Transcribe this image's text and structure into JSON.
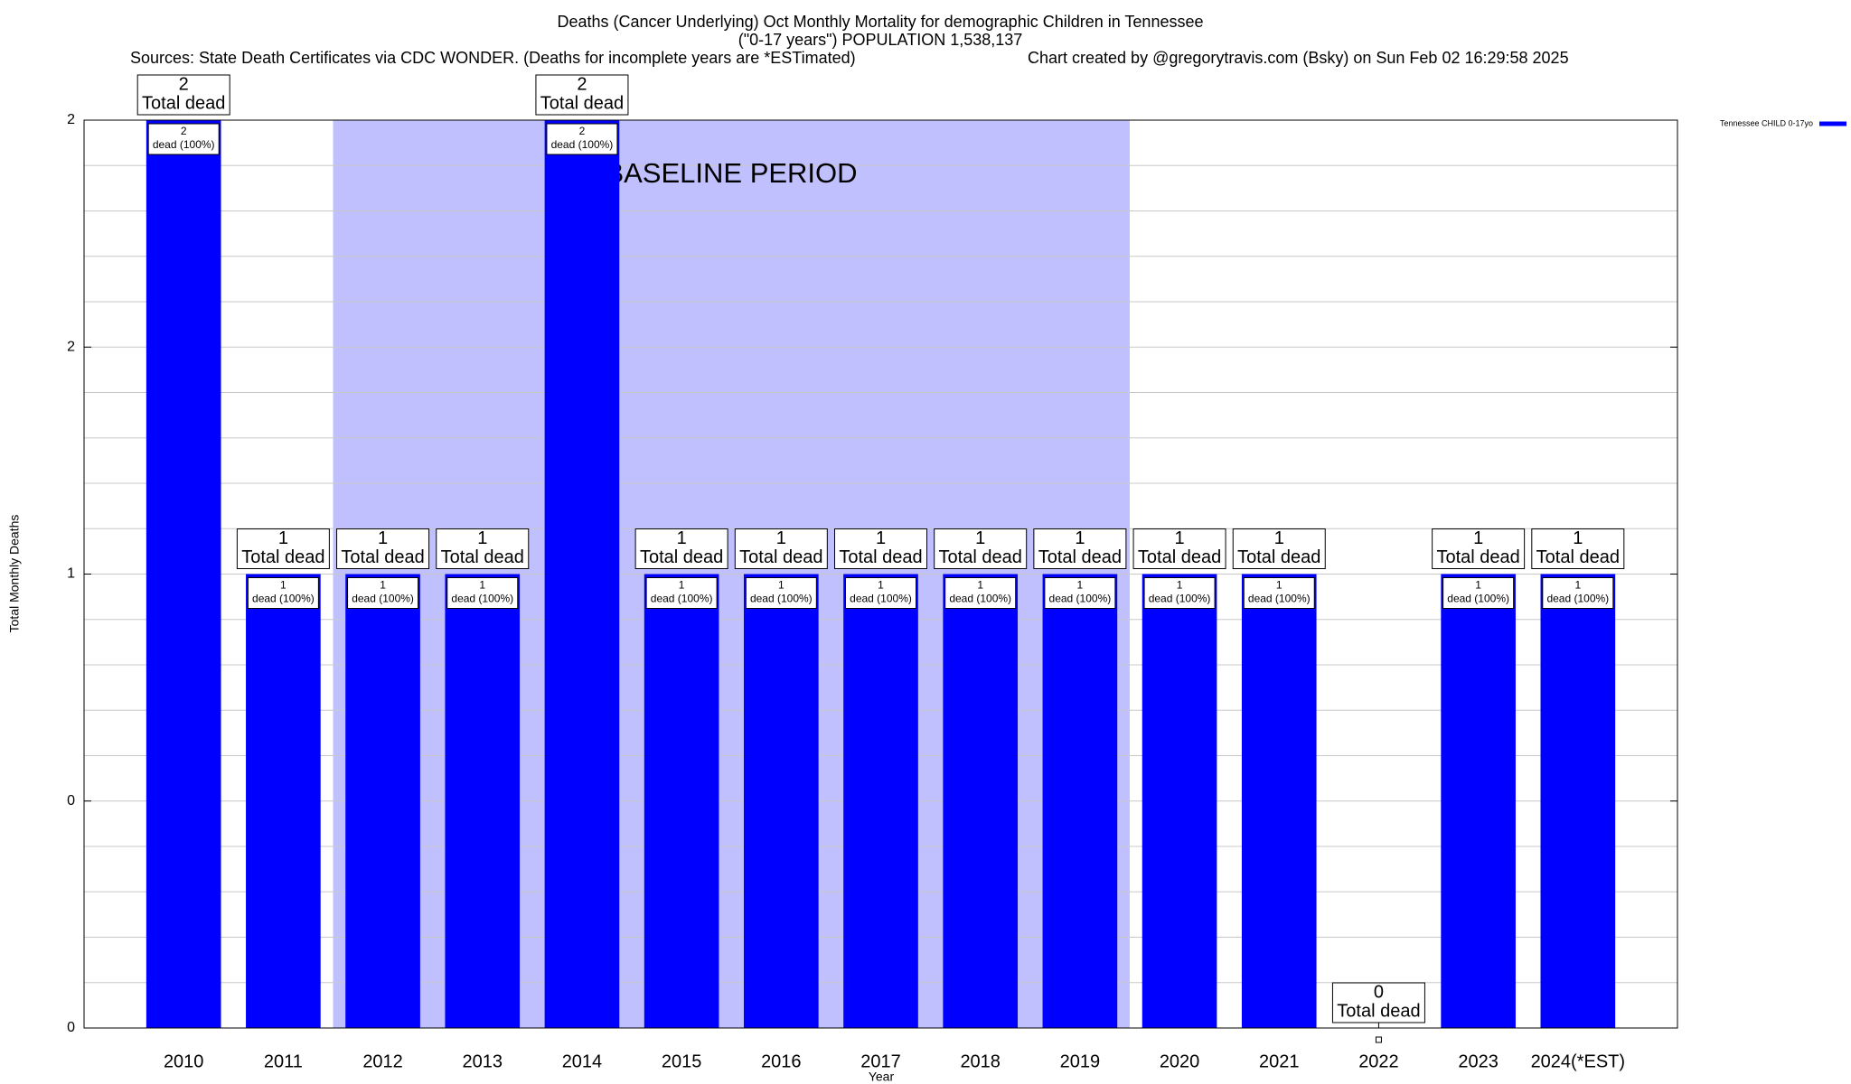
{
  "chart_data": {
    "type": "bar",
    "title": "Deaths (Cancer Underlying) Oct Monthly Mortality for demographic Children in Tennessee",
    "subtitle": "(\"0-17 years\") POPULATION 1,538,137",
    "source": "Sources: State Death Certificates via CDC WONDER. (Deaths for incomplete years are *ESTimated)",
    "credit": "Chart created by @gregorytravis.com (Bsky) on Sun Feb 02 16:29:58 2025",
    "x_label": "Year",
    "y_label": "Total Monthly Deaths",
    "categories": [
      "2010",
      "2011",
      "2012",
      "2013",
      "2014",
      "2015",
      "2016",
      "2017",
      "2018",
      "2019",
      "2020",
      "2021",
      "2022",
      "2023",
      "2024(*EST)"
    ],
    "series": [
      {
        "name": "Tennessee CHILD 0-17yo",
        "color": "#0000ff",
        "values": [
          2,
          1,
          1,
          1,
          2,
          1,
          1,
          1,
          1,
          1,
          1,
          1,
          0,
          1,
          1
        ]
      }
    ],
    "total_label": "Total dead",
    "share_label": "dead (100%)",
    "ylim": [
      0,
      2
    ],
    "yticks": [
      0,
      {
        "value": 0.5,
        "label": "0"
      },
      1,
      {
        "value": 1.5,
        "label": "2"
      },
      2
    ],
    "minor_yticks": [
      0.1,
      0.2,
      0.3,
      0.4,
      0.6,
      0.7,
      0.8,
      0.9,
      1.1,
      1.2,
      1.3,
      1.4,
      1.6,
      1.7,
      1.8,
      1.9
    ],
    "grid": true,
    "legend": "top-right",
    "baseline": {
      "start": "2012",
      "end": "2019",
      "label": "BASELINE PERIOD",
      "color": "#c0c0ff"
    }
  }
}
